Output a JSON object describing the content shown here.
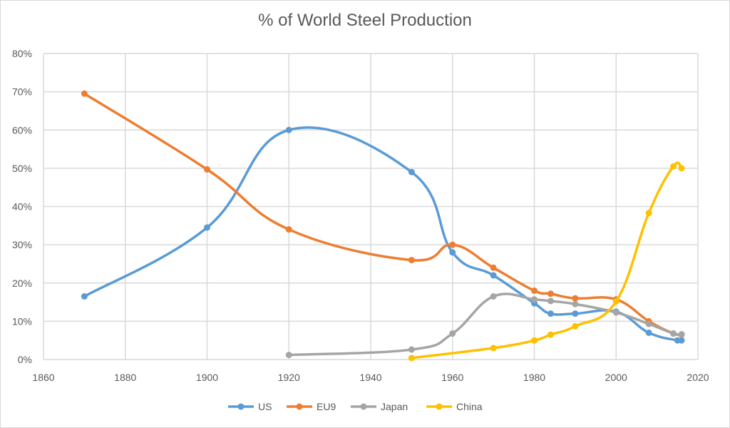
{
  "chart_data": {
    "type": "line",
    "title": "% of World Steel Production",
    "xlabel": "",
    "ylabel": "",
    "xlim": [
      1860,
      2020
    ],
    "ylim": [
      0,
      0.8
    ],
    "x_ticks": [
      "1860",
      "1880",
      "1900",
      "1920",
      "1940",
      "1960",
      "1980",
      "2000",
      "2020"
    ],
    "y_ticks": [
      "0%",
      "10%",
      "20%",
      "30%",
      "40%",
      "50%",
      "60%",
      "70%",
      "80%"
    ],
    "grid": true,
    "legend_position": "bottom",
    "series": [
      {
        "name": "US",
        "color": "#5b9bd5",
        "points": [
          [
            1870,
            0.165
          ],
          [
            1900,
            0.345
          ],
          [
            1920,
            0.6
          ],
          [
            1950,
            0.49
          ],
          [
            1960,
            0.28
          ],
          [
            1970,
            0.22
          ],
          [
            1980,
            0.147
          ],
          [
            1984,
            0.12
          ],
          [
            1990,
            0.12
          ],
          [
            2000,
            0.125
          ],
          [
            2008,
            0.07
          ],
          [
            2015,
            0.05
          ],
          [
            2016,
            0.05
          ]
        ]
      },
      {
        "name": "EU9",
        "color": "#ed7d31",
        "points": [
          [
            1870,
            0.695
          ],
          [
            1900,
            0.497
          ],
          [
            1920,
            0.34
          ],
          [
            1950,
            0.26
          ],
          [
            1960,
            0.3
          ],
          [
            1970,
            0.24
          ],
          [
            1980,
            0.18
          ],
          [
            1984,
            0.172
          ],
          [
            1990,
            0.16
          ],
          [
            2000,
            0.157
          ],
          [
            2008,
            0.1
          ],
          [
            2014,
            0.068
          ],
          [
            2016,
            0.065
          ]
        ]
      },
      {
        "name": "Japan",
        "color": "#a5a5a5",
        "points": [
          [
            1920,
            0.012
          ],
          [
            1950,
            0.026
          ],
          [
            1960,
            0.068
          ],
          [
            1970,
            0.165
          ],
          [
            1980,
            0.157
          ],
          [
            1984,
            0.153
          ],
          [
            1990,
            0.145
          ],
          [
            2000,
            0.123
          ],
          [
            2008,
            0.093
          ],
          [
            2014,
            0.068
          ],
          [
            2016,
            0.066
          ]
        ]
      },
      {
        "name": "China",
        "color": "#ffc000",
        "points": [
          [
            1950,
            0.004
          ],
          [
            1970,
            0.03
          ],
          [
            1980,
            0.05
          ],
          [
            1984,
            0.065
          ],
          [
            1990,
            0.087
          ],
          [
            2000,
            0.152
          ],
          [
            2008,
            0.383
          ],
          [
            2014,
            0.505
          ],
          [
            2016,
            0.5
          ]
        ]
      }
    ]
  }
}
